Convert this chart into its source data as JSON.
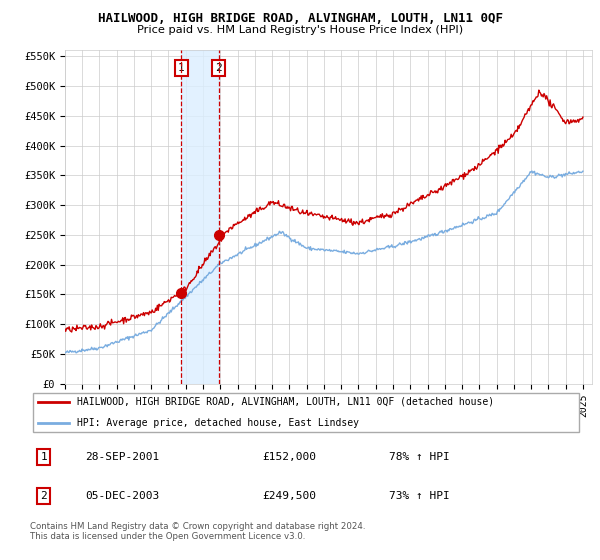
{
  "title": "HAILWOOD, HIGH BRIDGE ROAD, ALVINGHAM, LOUTH, LN11 0QF",
  "subtitle": "Price paid vs. HM Land Registry's House Price Index (HPI)",
  "ytick_labels": [
    "£0",
    "£50K",
    "£100K",
    "£150K",
    "£200K",
    "£250K",
    "£300K",
    "£350K",
    "£400K",
    "£450K",
    "£500K",
    "£550K"
  ],
  "yticks": [
    0,
    50000,
    100000,
    150000,
    200000,
    250000,
    300000,
    350000,
    400000,
    450000,
    500000,
    550000
  ],
  "hpi_color": "#7aade0",
  "price_color": "#cc0000",
  "shade_color": "#dbeeff",
  "sale1_date": 2001.75,
  "sale1_price": 152000,
  "sale2_date": 2003.92,
  "sale2_price": 249500,
  "legend_label_price": "HAILWOOD, HIGH BRIDGE ROAD, ALVINGHAM, LOUTH, LN11 0QF (detached house)",
  "legend_label_hpi": "HPI: Average price, detached house, East Lindsey",
  "table_row1_num": "1",
  "table_row1_date": "28-SEP-2001",
  "table_row1_price": "£152,000",
  "table_row1_hpi": "78% ↑ HPI",
  "table_row2_num": "2",
  "table_row2_date": "05-DEC-2003",
  "table_row2_price": "£249,500",
  "table_row2_hpi": "73% ↑ HPI",
  "footnote": "Contains HM Land Registry data © Crown copyright and database right 2024.\nThis data is licensed under the Open Government Licence v3.0.",
  "xmin": 1995.0,
  "xmax": 2025.5,
  "xticks": [
    1995,
    1996,
    1997,
    1998,
    1999,
    2000,
    2001,
    2002,
    2003,
    2004,
    2005,
    2006,
    2007,
    2008,
    2009,
    2010,
    2011,
    2012,
    2013,
    2014,
    2015,
    2016,
    2017,
    2018,
    2019,
    2020,
    2021,
    2022,
    2023,
    2024,
    2025
  ]
}
